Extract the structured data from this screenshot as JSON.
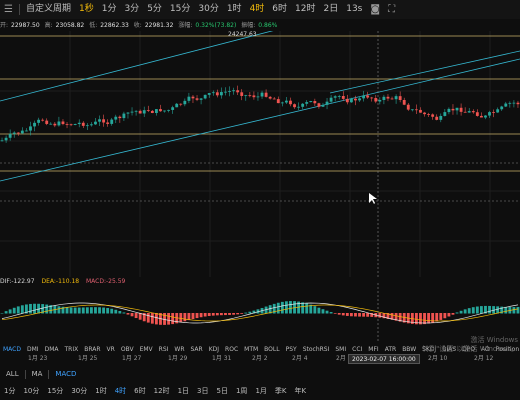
{
  "toolbar": {
    "items": [
      "自定义周期",
      "1秒",
      "1分",
      "3分",
      "5分",
      "15分",
      "30分",
      "1时",
      "4时",
      "6时",
      "12时",
      "2日",
      "13s"
    ],
    "active_index": 1
  },
  "ohlc": {
    "open_label": "开:",
    "open": "22987.50",
    "high_label": "高:",
    "high": "23058.82",
    "low_label": "低:",
    "low": "22862.33",
    "close_label": "收:",
    "close": "22981.32",
    "change_label": "涨幅:",
    "change": "0.32%(73.82)",
    "amp_label": "振幅:",
    "amp": "0.86%"
  },
  "chart": {
    "high_marker": "24247.63",
    "bull_color": "#26a69a",
    "bear_color": "#ef5350"
  },
  "oscillator": {
    "dif_label": "DIF:-122.97",
    "dea_label": "DEA:-110.18",
    "macd_label": "MACD:-25.59"
  },
  "indicators": {
    "items": [
      "MACD",
      "DMI",
      "DMA",
      "TRIX",
      "BRAR",
      "VR",
      "OBV",
      "EMV",
      "RSI",
      "WR",
      "SAR",
      "KDJ",
      "ROC",
      "MTM",
      "BOLL",
      "PSY",
      "StochRSI",
      "SMI",
      "CCI",
      "MFI",
      "ATR",
      "BBW",
      "SKDJ",
      "BIAS",
      "DPO",
      "AO",
      "Position"
    ],
    "active": "MACD"
  },
  "dates": [
    "1月 23",
    "1月 25",
    "1月 27",
    "1月 29",
    "1月 31",
    "2月 2",
    "2月 4",
    "2月",
    "2月 10",
    "2月 12"
  ],
  "crosshair_label": "2023-02-07 16:00:00",
  "bottom_row1": {
    "items": [
      "ALL",
      "MA",
      "MACD"
    ],
    "active": "MACD"
  },
  "bottom_row2": {
    "items": [
      "1分",
      "10分",
      "15分",
      "30分",
      "1时",
      "4时",
      "6时",
      "12时",
      "1日",
      "3日",
      "5日",
      "1周",
      "1月",
      "季K",
      "年K"
    ],
    "active": "4时"
  },
  "watermark": {
    "line1": "激活 Windows",
    "line2": "转到\"设置\"以激活 Windows。"
  }
}
